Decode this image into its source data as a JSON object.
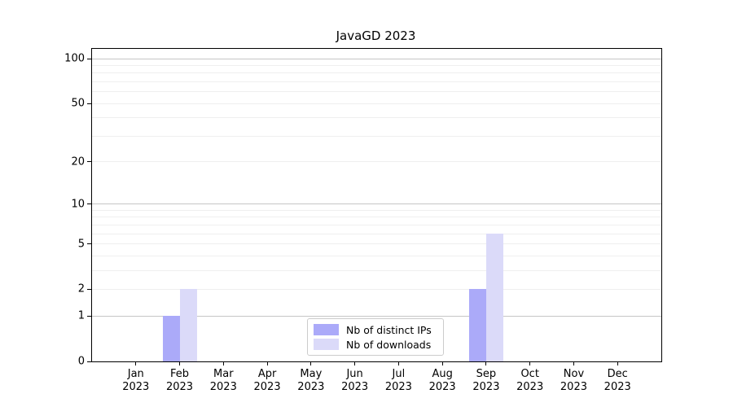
{
  "chart_data": {
    "type": "bar",
    "title": "JavaGD 2023",
    "categories": [
      {
        "month": "Jan",
        "year": "2023"
      },
      {
        "month": "Feb",
        "year": "2023"
      },
      {
        "month": "Mar",
        "year": "2023"
      },
      {
        "month": "Apr",
        "year": "2023"
      },
      {
        "month": "May",
        "year": "2023"
      },
      {
        "month": "Jun",
        "year": "2023"
      },
      {
        "month": "Jul",
        "year": "2023"
      },
      {
        "month": "Aug",
        "year": "2023"
      },
      {
        "month": "Sep",
        "year": "2023"
      },
      {
        "month": "Oct",
        "year": "2023"
      },
      {
        "month": "Nov",
        "year": "2023"
      },
      {
        "month": "Dec",
        "year": "2023"
      }
    ],
    "series": [
      {
        "name": "Nb of distinct IPs",
        "color": "#abaaf9",
        "values": [
          0,
          1,
          0,
          0,
          0,
          0,
          0,
          0,
          2,
          0,
          0,
          0
        ]
      },
      {
        "name": "Nb of downloads",
        "color": "#dbdaf9",
        "values": [
          0,
          2,
          0,
          0,
          0,
          0,
          0,
          0,
          6,
          0,
          0,
          0
        ]
      }
    ],
    "y_axis": {
      "scale": "log1p",
      "ticks": [
        0,
        1,
        2,
        5,
        10,
        20,
        50,
        100
      ],
      "gridlines_minor": [
        2,
        3,
        4,
        5,
        6,
        7,
        8,
        9,
        20,
        30,
        40,
        50,
        60,
        70,
        80,
        90
      ],
      "gridlines_major": [
        1,
        10,
        100
      ]
    },
    "ylim": [
      0,
      116
    ],
    "xlabel": "",
    "ylabel": "",
    "grid": "on",
    "legend": {
      "position": "bottom-center"
    },
    "colors": {
      "axis": "#000000",
      "grid_minor": "#efefef",
      "grid_major": "#c6c6c6",
      "background": "#ffffff"
    }
  }
}
